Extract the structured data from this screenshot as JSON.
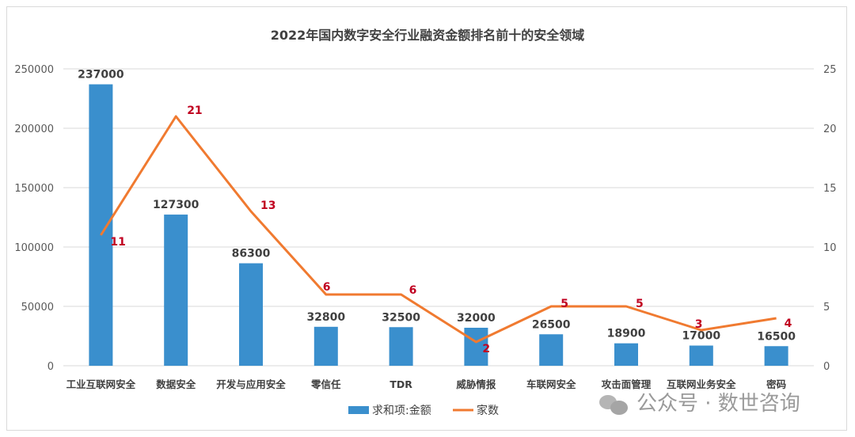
{
  "chart_data": {
    "type": "bar+line",
    "title": "2022年国内数字安全行业融资金额排名前十的安全领域",
    "categories": [
      "工业互联网安全",
      "数据安全",
      "开发与应用安全",
      "零信任",
      "TDR",
      "威胁情报",
      "车联网安全",
      "攻击面管理",
      "互联网业务安全",
      "密码"
    ],
    "series": [
      {
        "name": "求和项:金额",
        "type": "bar",
        "axis": "left",
        "color": "#3a8fcd",
        "values": [
          237000,
          127300,
          86300,
          32800,
          32500,
          32000,
          26500,
          18900,
          17000,
          16500
        ]
      },
      {
        "name": "家数",
        "type": "line",
        "axis": "right",
        "color": "#f07a30",
        "values": [
          11,
          21,
          13,
          6,
          6,
          2,
          5,
          5,
          3,
          4
        ]
      }
    ],
    "left_axis": {
      "ylim": [
        0,
        250000
      ],
      "ticks": [
        "0",
        "50000",
        "100000",
        "150000",
        "200000",
        "250000"
      ]
    },
    "right_axis": {
      "ylim": [
        0,
        25
      ],
      "ticks": [
        "0",
        "5",
        "10",
        "15",
        "20",
        "25"
      ]
    },
    "grid": true,
    "legend": "bottom",
    "label_color": "#c00020"
  },
  "watermark": "公众号 · 数世咨询"
}
